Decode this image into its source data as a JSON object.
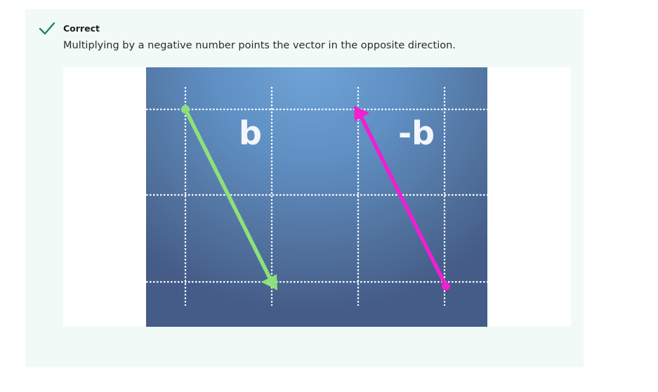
{
  "feedback": {
    "status": "Correct",
    "message": "Multiplying by a negative number points the vector in the opposite direction.",
    "icon": "checkmark-icon",
    "accent_color": "#1b8a5a",
    "panel_color": "#f1faf6"
  },
  "figure": {
    "vectors": [
      {
        "label": "b",
        "color": "#8ee07c"
      },
      {
        "label": "-b",
        "color": "#f01fd0"
      }
    ],
    "grid_color": "#ffffff"
  }
}
